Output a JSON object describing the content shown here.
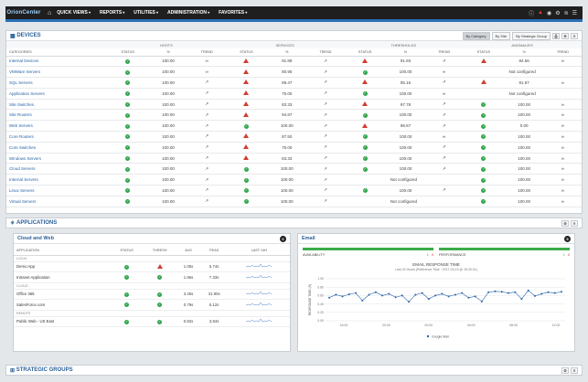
{
  "nav": {
    "logo": "OrionCenter",
    "items": [
      "QUICK VIEWS",
      "REPORTS",
      "UTILITIES",
      "ADMINISTRATION",
      "FAVORITES"
    ]
  },
  "devices": {
    "title": "DEVICES",
    "view_label": "By Category",
    "view_site": "By Site",
    "view_strategic": "By Strategic Group",
    "groups": [
      "HOSTS",
      "SERVICES",
      "THRESHOLDS",
      "ANOMALIES"
    ],
    "sub": [
      "CATEGORIES",
      "STATUS",
      "%",
      "TREND",
      "STATUS",
      "%",
      "TREND",
      "STATUS",
      "%",
      "TREND",
      "STATUS",
      "%",
      "TREND"
    ],
    "rows": [
      {
        "name": "Internal Devices",
        "h": [
          "ok",
          "100.00",
          "flat"
        ],
        "s": [
          "warn",
          "91.89",
          "up"
        ],
        "t": [
          "warn",
          "91.93",
          "up"
        ],
        "a": [
          "warn",
          "84.66",
          "flat"
        ]
      },
      {
        "name": "VMWare Servers",
        "h": [
          "ok",
          "100.00",
          "flat"
        ],
        "s": [
          "warn",
          "80.95",
          "up"
        ],
        "t": [
          "ok",
          "100.00",
          "flat"
        ],
        "a": [
          "",
          "Not configured",
          ""
        ]
      },
      {
        "name": "SQL Servers",
        "h": [
          "ok",
          "100.00",
          "up"
        ],
        "s": [
          "warn",
          "89.47",
          "up"
        ],
        "t": [
          "warn",
          "95.16",
          "up"
        ],
        "a": [
          "warn",
          "91.67",
          "flat"
        ]
      },
      {
        "name": "Application Servers",
        "h": [
          "ok",
          "100.00",
          "up"
        ],
        "s": [
          "warn",
          "75.00",
          "up"
        ],
        "t": [
          "ok",
          "100.00",
          "flat"
        ],
        "a": [
          "",
          "Not configured",
          ""
        ]
      },
      {
        "name": "Site Switches",
        "h": [
          "ok",
          "100.00",
          "up"
        ],
        "s": [
          "warn",
          "83.33",
          "up"
        ],
        "t": [
          "warn",
          "97.78",
          "up"
        ],
        "a": [
          "ok",
          "100.00",
          "flat"
        ]
      },
      {
        "name": "Site Routers",
        "h": [
          "ok",
          "100.00",
          "up"
        ],
        "s": [
          "warn",
          "94.87",
          "up"
        ],
        "t": [
          "ok",
          "100.00",
          "up"
        ],
        "a": [
          "ok",
          "100.00",
          "flat"
        ]
      },
      {
        "name": "Web Servers",
        "h": [
          "ok",
          "100.00",
          "up"
        ],
        "s": [
          "ok",
          "100.00",
          "up"
        ],
        "t": [
          "warn",
          "98.67",
          "up"
        ],
        "a": [
          "ok",
          "0.00",
          "flat"
        ]
      },
      {
        "name": "Core Routers",
        "h": [
          "ok",
          "100.00",
          "up"
        ],
        "s": [
          "warn",
          "87.50",
          "up"
        ],
        "t": [
          "ok",
          "100.00",
          "flat"
        ],
        "a": [
          "ok",
          "100.00",
          "flat"
        ]
      },
      {
        "name": "Core Switches",
        "h": [
          "ok",
          "100.00",
          "up"
        ],
        "s": [
          "warn",
          "75.00",
          "up"
        ],
        "t": [
          "ok",
          "100.00",
          "up"
        ],
        "a": [
          "ok",
          "100.00",
          "flat"
        ]
      },
      {
        "name": "Windows Servers",
        "h": [
          "ok",
          "100.00",
          "up"
        ],
        "s": [
          "warn",
          "83.33",
          "up"
        ],
        "t": [
          "ok",
          "100.00",
          "up"
        ],
        "a": [
          "ok",
          "100.00",
          "flat"
        ]
      },
      {
        "name": "Cloud Servers",
        "h": [
          "ok",
          "100.00",
          "up"
        ],
        "s": [
          "ok",
          "100.00",
          "up"
        ],
        "t": [
          "ok",
          "100.00",
          "up"
        ],
        "a": [
          "ok",
          "100.00",
          "flat"
        ]
      },
      {
        "name": "Internal Servers",
        "h": [
          "ok",
          "100.00",
          "up"
        ],
        "s": [
          "ok",
          "100.00",
          "up"
        ],
        "t": [
          "",
          "Not configured",
          ""
        ],
        "a": [
          "ok",
          "100.00",
          "flat"
        ]
      },
      {
        "name": "Linux Servers",
        "h": [
          "ok",
          "100.00",
          "up"
        ],
        "s": [
          "ok",
          "100.00",
          "up"
        ],
        "t": [
          "ok",
          "100.00",
          "up"
        ],
        "a": [
          "ok",
          "100.00",
          "flat"
        ]
      },
      {
        "name": "Virtual Servers",
        "h": [
          "ok",
          "100.00",
          "up"
        ],
        "s": [
          "ok",
          "100.00",
          "up"
        ],
        "t": [
          "",
          "Not configured",
          ""
        ],
        "a": [
          "ok",
          "100.00",
          "flat"
        ]
      }
    ]
  },
  "applications": {
    "title": "APPLICATIONS",
    "cloud_title": "Cloud and Web",
    "cloud_badge": "0",
    "headers": [
      "APPLICATION",
      "STATUS",
      "THRESH",
      "AVG",
      "PEAK",
      "LAST 24H"
    ],
    "sections": [
      {
        "cat": "LOCAL",
        "rows": [
          {
            "name": "Demo App",
            "status": "ok",
            "thresh": "warn",
            "avg": "1.05s",
            "peak": "5.74s"
          },
          {
            "name": "Intranet Application",
            "status": "ok",
            "thresh": "ok",
            "avg": "1.96s",
            "peak": "7.33s"
          }
        ]
      },
      {
        "cat": "CLOUD",
        "rows": [
          {
            "name": "Office 365",
            "status": "ok",
            "thresh": "ok",
            "avg": "3.45s",
            "peak": "31.90s"
          },
          {
            "name": "SalesForce.com",
            "status": "ok",
            "thresh": "ok",
            "avg": "0.79s",
            "peak": "5.12s"
          }
        ]
      },
      {
        "cat": "REMOTE",
        "rows": [
          {
            "name": "Public Web - US East",
            "status": "ok",
            "thresh": "ok",
            "avg": "0.82s",
            "peak": "3.84s"
          }
        ]
      }
    ],
    "email": {
      "title": "Email",
      "badge": "5",
      "availability": "AVAILABILITY",
      "availability_ok": "1",
      "availability_bad": "0",
      "performance": "PERFORMANCE",
      "performance_ok": "1",
      "performance_bad": "0",
      "chart_title": "EMAIL RESPONSE TIME",
      "chart_subtitle": "Last 24 Hours (Reference Time : 2017-03-15 @ 15:20:31)",
      "legend": "Google Mail"
    }
  },
  "strategic": {
    "title": "STRATEGIC GROUPS"
  },
  "chart_data": {
    "type": "line",
    "title": "EMAIL RESPONSE TIME",
    "subtitle": "Last 24 Hours (Reference Time : 2017-03-15 @ 15:20:31)",
    "ylabel": "RESPONSE TIME (S)",
    "xticks": [
      "16:00",
      "20:00",
      "00:00",
      "04:00",
      "08:00",
      "12:00"
    ],
    "yticks": [
      "0.00",
      "0.20",
      "0.40",
      "0.60",
      "0.80",
      "1.00"
    ],
    "ylim": [
      0,
      1
    ],
    "series": [
      {
        "name": "Google Mail",
        "values": [
          0.55,
          0.62,
          0.58,
          0.63,
          0.66,
          0.48,
          0.62,
          0.68,
          0.6,
          0.64,
          0.56,
          0.6,
          0.45,
          0.62,
          0.66,
          0.52,
          0.6,
          0.64,
          0.58,
          0.62,
          0.66,
          0.55,
          0.58,
          0.46,
          0.68,
          0.7,
          0.69,
          0.66,
          0.68,
          0.52,
          0.72,
          0.59,
          0.64,
          0.68,
          0.66,
          0.69
        ]
      }
    ]
  }
}
